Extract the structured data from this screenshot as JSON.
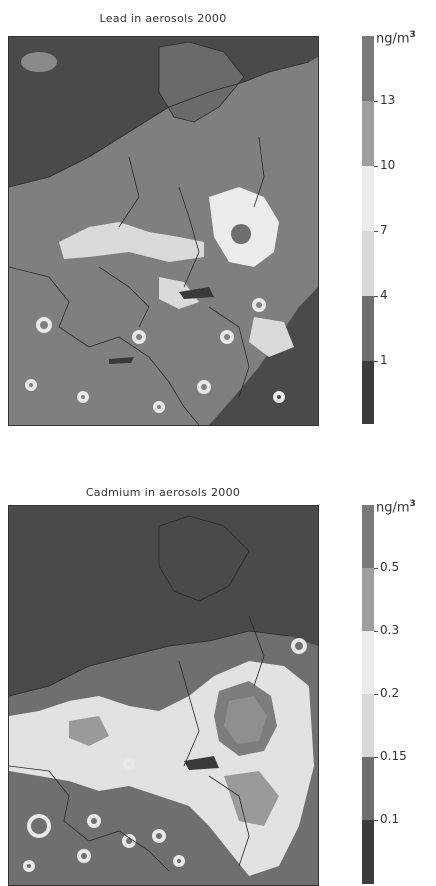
{
  "maps": [
    {
      "title": "Lead in aerosols 2000",
      "unit": "ng/m",
      "unit_sup": "3",
      "legend_classes": [
        {
          "color": "#3d3d3d"
        },
        {
          "color": "#6e6e6e"
        },
        {
          "color": "#d8d8d8"
        },
        {
          "color": "#ececec"
        },
        {
          "color": "#9e9e9e"
        },
        {
          "color": "#7a7a7a"
        }
      ],
      "legend_labels": [
        "1",
        "4",
        "7",
        "10",
        "13"
      ]
    },
    {
      "title": "Cadmium in aerosols 2000",
      "unit": "ng/m",
      "unit_sup": "3",
      "legend_classes": [
        {
          "color": "#3d3d3d"
        },
        {
          "color": "#6e6e6e"
        },
        {
          "color": "#d8d8d8"
        },
        {
          "color": "#ececec"
        },
        {
          "color": "#9e9e9e"
        },
        {
          "color": "#7a7a7a"
        }
      ],
      "legend_labels": [
        "0.1",
        "0.15",
        "0.2",
        "0.3",
        "0.5"
      ]
    }
  ]
}
